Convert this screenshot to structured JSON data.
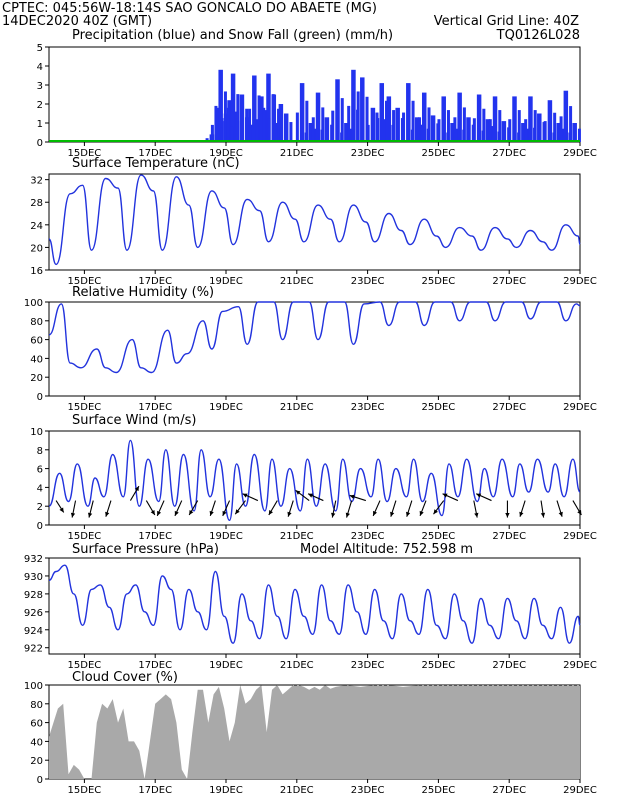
{
  "header": {
    "line1": "CPTEC:   045:56W-18:14S   SAO GONCALO DO ABAETE (MG)",
    "line2_left": "14DEC2020 40Z (GMT)",
    "line2_right": "Vertical Grid Line: 40Z",
    "code": "TQ0126L028"
  },
  "colors": {
    "header": "#ff6600",
    "title": "#ff00cc",
    "precip": "#2233ee",
    "snow": "#00bb00",
    "line": "#2233dd",
    "wind_arrow": "#000000",
    "cloud": "#a9a9a9"
  },
  "x_axis": {
    "start_day": 14,
    "end_day": 29,
    "tick_labels": [
      "15DEC",
      "17DEC",
      "19DEC",
      "21DEC",
      "23DEC",
      "25DEC",
      "27DEC",
      "29DEC"
    ],
    "tick_days": [
      15,
      17,
      19,
      21,
      23,
      25,
      27,
      29
    ]
  },
  "chart_data": [
    {
      "id": "precip",
      "type": "bar",
      "title": "Precipitation (blue) and Snow Fall (green) (mm/h)",
      "ylim": [
        0,
        5
      ],
      "yticks": [
        0,
        1,
        2,
        3,
        4,
        5
      ],
      "ytick_labels": [
        "0",
        "1",
        "2",
        "3",
        "4",
        "5"
      ],
      "series": [
        {
          "name": "Precipitation",
          "x_days": [
            18.6,
            18.75,
            18.85,
            19.0,
            19.1,
            19.2,
            19.3,
            19.45,
            19.6,
            19.8,
            20.0,
            20.2,
            20.35,
            20.55,
            20.7,
            21.15,
            21.4,
            21.6,
            21.85,
            22.15,
            22.4,
            22.6,
            22.85,
            23.15,
            23.4,
            23.6,
            23.85,
            24.15,
            24.4,
            24.6,
            24.85,
            25.15,
            25.4,
            25.6,
            25.85,
            26.15,
            26.4,
            26.6,
            26.85,
            27.15,
            27.4,
            27.6,
            27.85,
            28.15,
            28.4,
            28.6,
            28.85
          ],
          "values": [
            0.4,
            1.8,
            3.8,
            1.5,
            2.2,
            3.6,
            1.6,
            2.5,
            1.3,
            3.5,
            2.4,
            3.6,
            2.5,
            2.0,
            1.5,
            3.1,
            1.0,
            2.6,
            1.3,
            3.3,
            1.0,
            3.8,
            3.4,
            1.8,
            3.1,
            2.4,
            1.8,
            3.1,
            1.3,
            2.6,
            1.4,
            2.4,
            1.0,
            2.6,
            1.3,
            2.5,
            1.2,
            2.4,
            1.1,
            2.4,
            1.0,
            2.4,
            1.5,
            2.2,
            1.0,
            2.7,
            1.0
          ]
        },
        {
          "name": "Snow Fall",
          "x_days": [
            14.0,
            29.0
          ],
          "values": [
            0,
            0
          ]
        }
      ]
    },
    {
      "id": "temp",
      "type": "line",
      "title": "Surface Temperature (nC)",
      "ylim": [
        16,
        33
      ],
      "yticks": [
        16,
        20,
        24,
        28,
        32
      ],
      "ytick_labels": [
        "16",
        "20",
        "24",
        "28",
        "32"
      ],
      "series": [
        {
          "name": "Temperature",
          "x_days": [
            14.0,
            14.2,
            14.6,
            14.95,
            15.2,
            15.6,
            15.95,
            16.2,
            16.6,
            16.95,
            17.2,
            17.6,
            17.95,
            18.2,
            18.6,
            18.95,
            19.2,
            19.6,
            19.95,
            20.2,
            20.6,
            20.95,
            21.2,
            21.6,
            21.95,
            22.2,
            22.6,
            22.95,
            23.2,
            23.6,
            23.95,
            24.2,
            24.6,
            24.95,
            25.2,
            25.6,
            25.95,
            26.2,
            26.6,
            26.95,
            27.2,
            27.6,
            27.95,
            28.2,
            28.6,
            28.95,
            29.0
          ],
          "values": [
            21.5,
            17.0,
            29.5,
            31.0,
            19.5,
            32.2,
            30.5,
            19.5,
            32.8,
            30.0,
            19.5,
            32.5,
            27.5,
            20.0,
            30.0,
            27.0,
            20.5,
            28.5,
            26.5,
            21.0,
            28.0,
            25.0,
            21.0,
            27.5,
            25.0,
            21.0,
            27.5,
            24.5,
            21.0,
            26.0,
            23.0,
            20.5,
            25.0,
            22.0,
            20.0,
            23.5,
            22.0,
            19.5,
            23.5,
            21.5,
            20.0,
            23.0,
            21.0,
            19.5,
            24.0,
            22.0,
            20.5
          ]
        }
      ]
    },
    {
      "id": "rh",
      "type": "line",
      "title": "Relative Humidity (%)",
      "ylim": [
        0,
        100
      ],
      "yticks": [
        0,
        20,
        40,
        60,
        80,
        100
      ],
      "ytick_labels": [
        "0",
        "20",
        "40",
        "60",
        "80",
        "100"
      ],
      "series": [
        {
          "name": "Relative Humidity",
          "x_days": [
            14.0,
            14.35,
            14.6,
            14.9,
            15.35,
            15.6,
            15.9,
            16.35,
            16.6,
            16.9,
            17.35,
            17.6,
            17.9,
            18.35,
            18.6,
            18.9,
            19.35,
            19.6,
            19.9,
            20.35,
            20.6,
            20.9,
            21.35,
            21.6,
            21.9,
            22.35,
            22.6,
            22.9,
            23.35,
            23.6,
            23.9,
            24.35,
            24.6,
            24.9,
            25.35,
            25.6,
            25.9,
            26.35,
            26.6,
            26.9,
            27.35,
            27.6,
            27.9,
            28.35,
            28.6,
            28.9,
            29.0
          ],
          "values": [
            65,
            98,
            35,
            30,
            50,
            30,
            25,
            60,
            30,
            25,
            70,
            35,
            45,
            80,
            50,
            90,
            95,
            55,
            100,
            100,
            60,
            100,
            100,
            60,
            100,
            100,
            55,
            98,
            100,
            75,
            100,
            100,
            75,
            100,
            100,
            80,
            100,
            100,
            80,
            100,
            100,
            82,
            100,
            100,
            80,
            98,
            96
          ]
        }
      ]
    },
    {
      "id": "wind",
      "type": "line",
      "title": "Surface Wind (m/s)",
      "ylim": [
        0,
        10
      ],
      "yticks": [
        0,
        2,
        4,
        6,
        8,
        10
      ],
      "ytick_labels": [
        "0",
        "2",
        "4",
        "6",
        "8",
        "10"
      ],
      "series": [
        {
          "name": "Wind Speed",
          "x_days": [
            14.0,
            14.3,
            14.55,
            14.8,
            15.1,
            15.3,
            15.55,
            15.8,
            16.1,
            16.3,
            16.55,
            16.8,
            17.1,
            17.3,
            17.55,
            17.8,
            18.1,
            18.3,
            18.55,
            18.8,
            19.1,
            19.3,
            19.55,
            19.8,
            20.1,
            20.3,
            20.55,
            20.8,
            21.1,
            21.3,
            21.55,
            21.8,
            22.1,
            22.3,
            22.55,
            22.8,
            23.1,
            23.3,
            23.55,
            23.8,
            24.1,
            24.3,
            24.55,
            24.8,
            25.1,
            25.3,
            25.55,
            25.8,
            26.1,
            26.3,
            26.55,
            26.8,
            27.1,
            27.3,
            27.55,
            27.8,
            28.1,
            28.3,
            28.55,
            28.8,
            29.0
          ],
          "values": [
            2.0,
            5.5,
            2.5,
            6.5,
            2.0,
            5.0,
            3.0,
            7.5,
            3.0,
            9.0,
            2.0,
            7.0,
            2.5,
            8.0,
            2.0,
            7.5,
            1.5,
            8.0,
            3.0,
            7.0,
            0.5,
            6.5,
            2.0,
            7.5,
            1.5,
            7.0,
            2.0,
            6.0,
            1.5,
            7.0,
            2.0,
            6.5,
            1.5,
            7.0,
            2.5,
            6.0,
            3.0,
            7.0,
            2.5,
            6.0,
            3.0,
            7.0,
            2.5,
            5.5,
            1.0,
            6.5,
            3.0,
            7.0,
            2.5,
            6.0,
            3.0,
            7.0,
            3.0,
            6.5,
            3.5,
            7.0,
            3.5,
            6.5,
            3.0,
            7.0,
            3.5
          ]
        }
      ],
      "arrows": [
        {
          "day": 14.2,
          "u": 0.45,
          "v": -0.7
        },
        {
          "day": 14.75,
          "u": -0.2,
          "v": -1.0
        },
        {
          "day": 15.25,
          "u": -0.25,
          "v": -1.0
        },
        {
          "day": 15.75,
          "u": -0.3,
          "v": -0.95
        },
        {
          "day": 16.3,
          "u": 0.5,
          "v": 0.85
        },
        {
          "day": 16.75,
          "u": 0.5,
          "v": -0.85
        },
        {
          "day": 17.25,
          "u": -0.4,
          "v": -0.9
        },
        {
          "day": 17.75,
          "u": -0.4,
          "v": -0.9
        },
        {
          "day": 18.2,
          "u": -0.5,
          "v": -0.85
        },
        {
          "day": 18.7,
          "u": -0.3,
          "v": -0.9
        },
        {
          "day": 19.1,
          "u": -0.4,
          "v": -0.9
        },
        {
          "day": 19.55,
          "u": -0.6,
          "v": -0.8
        },
        {
          "day": 19.9,
          "u": -0.9,
          "v": 0.4
        },
        {
          "day": 20.45,
          "u": -0.5,
          "v": -0.85
        },
        {
          "day": 20.9,
          "u": -0.3,
          "v": -0.95
        },
        {
          "day": 21.35,
          "u": -0.8,
          "v": 0.6
        },
        {
          "day": 21.75,
          "u": -0.9,
          "v": 0.4
        },
        {
          "day": 22.1,
          "u": -0.2,
          "v": -1.0
        },
        {
          "day": 22.55,
          "u": -0.3,
          "v": -1.0
        },
        {
          "day": 22.95,
          "u": -0.95,
          "v": 0.3
        },
        {
          "day": 23.35,
          "u": -0.4,
          "v": -0.9
        },
        {
          "day": 23.8,
          "u": -0.3,
          "v": -0.95
        },
        {
          "day": 24.25,
          "u": -0.3,
          "v": -0.95
        },
        {
          "day": 24.65,
          "u": -0.35,
          "v": -0.9
        },
        {
          "day": 25.15,
          "u": -0.6,
          "v": -0.8
        },
        {
          "day": 25.55,
          "u": -0.9,
          "v": 0.4
        },
        {
          "day": 26.0,
          "u": 0.2,
          "v": -1.0
        },
        {
          "day": 26.5,
          "u": -0.9,
          "v": 0.4
        },
        {
          "day": 26.95,
          "u": 0.0,
          "v": -1.0
        },
        {
          "day": 27.45,
          "u": -0.3,
          "v": -0.95
        },
        {
          "day": 27.9,
          "u": 0.15,
          "v": -1.0
        },
        {
          "day": 28.35,
          "u": 0.3,
          "v": -0.95
        },
        {
          "day": 28.8,
          "u": 0.5,
          "v": -0.85
        }
      ]
    },
    {
      "id": "pres",
      "type": "line",
      "title": "Surface Pressure (hPa)",
      "ylim": [
        921.3,
        932
      ],
      "yticks": [
        922,
        924,
        926,
        928,
        930,
        932
      ],
      "ytick_labels": [
        "922",
        "924",
        "926",
        "928",
        "930",
        "932"
      ],
      "series": [
        {
          "name": "Pressure",
          "x_days": [
            14.0,
            14.2,
            14.45,
            14.7,
            14.95,
            15.2,
            15.45,
            15.7,
            15.95,
            16.2,
            16.45,
            16.7,
            16.95,
            17.2,
            17.45,
            17.7,
            17.95,
            18.2,
            18.45,
            18.7,
            18.95,
            19.2,
            19.45,
            19.7,
            19.95,
            20.2,
            20.45,
            20.7,
            20.95,
            21.2,
            21.45,
            21.7,
            21.95,
            22.2,
            22.45,
            22.7,
            22.95,
            23.2,
            23.45,
            23.7,
            23.95,
            24.2,
            24.45,
            24.7,
            24.95,
            25.2,
            25.45,
            25.7,
            25.95,
            26.2,
            26.45,
            26.7,
            26.95,
            27.2,
            27.45,
            27.7,
            27.95,
            28.2,
            28.45,
            28.7,
            28.95,
            29.0
          ],
          "values": [
            929.5,
            930.5,
            931.2,
            928.0,
            924.5,
            928.5,
            929.0,
            926.5,
            924.0,
            928.0,
            929.0,
            926.0,
            924.5,
            930.0,
            928.5,
            924.0,
            928.5,
            926.0,
            924.0,
            930.5,
            925.5,
            922.5,
            928.0,
            925.0,
            923.0,
            929.0,
            925.5,
            923.0,
            928.5,
            925.5,
            923.5,
            929.0,
            925.0,
            923.5,
            929.0,
            926.0,
            923.5,
            928.5,
            925.0,
            923.0,
            928.0,
            925.0,
            923.5,
            928.5,
            924.5,
            923.0,
            928.0,
            925.0,
            922.5,
            927.5,
            924.5,
            923.0,
            927.5,
            925.0,
            923.0,
            927.5,
            924.5,
            923.0,
            926.5,
            922.5,
            925.5,
            924.5
          ]
        }
      ]
    },
    {
      "id": "cloud",
      "type": "area",
      "title": "Cloud Cover (%)",
      "ylim": [
        0,
        100
      ],
      "yticks": [
        0,
        20,
        40,
        60,
        80,
        100
      ],
      "ytick_labels": [
        "0",
        "20",
        "40",
        "60",
        "80",
        "100"
      ],
      "series": [
        {
          "name": "Cloud Cover",
          "x_days": [
            14.0,
            14.25,
            14.4,
            14.55,
            14.7,
            14.85,
            15.0,
            15.2,
            15.35,
            15.5,
            15.65,
            15.8,
            15.95,
            16.1,
            16.25,
            16.4,
            16.55,
            16.7,
            16.85,
            17.0,
            17.15,
            17.3,
            17.45,
            17.6,
            17.75,
            17.9,
            18.05,
            18.2,
            18.35,
            18.5,
            18.65,
            18.8,
            18.95,
            19.1,
            19.25,
            19.4,
            19.55,
            19.7,
            19.85,
            20.0,
            20.15,
            20.3,
            20.45,
            20.6,
            20.75,
            20.9,
            21.05,
            21.2,
            21.35,
            21.5,
            21.65,
            21.8,
            21.95,
            22.1,
            22.4,
            22.8,
            23.2,
            23.6,
            24.0,
            24.5,
            25.0,
            26.0,
            27.0,
            28.0,
            29.0
          ],
          "values": [
            45,
            75,
            80,
            5,
            15,
            10,
            0,
            0,
            60,
            80,
            75,
            85,
            60,
            75,
            40,
            40,
            30,
            0,
            40,
            80,
            85,
            90,
            85,
            60,
            10,
            0,
            50,
            95,
            95,
            60,
            90,
            98,
            75,
            40,
            60,
            100,
            80,
            85,
            95,
            100,
            50,
            95,
            100,
            90,
            95,
            100,
            100,
            98,
            95,
            98,
            95,
            100,
            96,
            98,
            100,
            98,
            100,
            100,
            98,
            100,
            100,
            100,
            100,
            100,
            100
          ]
        }
      ]
    }
  ],
  "panel_extras": {
    "pres_altitude": "Model Altitude: 752.598 m"
  }
}
